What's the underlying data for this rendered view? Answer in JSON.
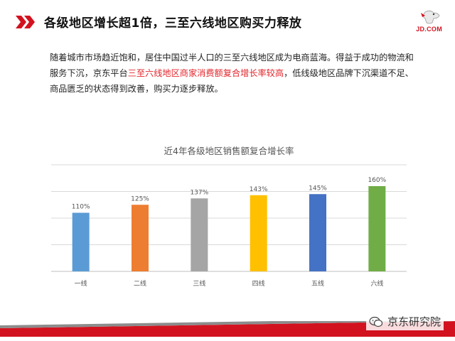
{
  "header": {
    "title": "各级地区增长超1倍，三至六线地区购买力释放",
    "brand_text": "JD.COM",
    "accent_color": "#d3121f",
    "icons": [
      "chevron-arrows-icon",
      "jd-dog-logo-icon"
    ]
  },
  "intro": {
    "before": "随着城市市场趋近饱和，居住中国过半人口的三至六线地区成为电商蓝海。得益于成功的物流和服务下沉，京东平台",
    "highlight": "三至六线地区商家消费额复合增长率较高",
    "after": "，低线级地区品牌下沉渠道不足、商品匮乏的状态得到改善，购买力逐步释放。",
    "highlight_color": "#e2252b"
  },
  "chart_data": {
    "type": "bar",
    "title": "近4年各级地区销售额复合增长率",
    "categories": [
      "一线",
      "二线",
      "三线",
      "四线",
      "五线",
      "六线"
    ],
    "values": [
      110,
      125,
      137,
      143,
      145,
      160
    ],
    "value_labels": [
      "110%",
      "125%",
      "137%",
      "143%",
      "145%",
      "160%"
    ],
    "colors": [
      "#5b9bd5",
      "#ed7d31",
      "#a5a5a5",
      "#ffc000",
      "#4472c4",
      "#70ad47"
    ],
    "ylim": [
      0,
      200
    ],
    "grid": true,
    "xlabel": "",
    "ylabel": ""
  },
  "footer": {
    "watermark": "京东研究院",
    "watermark_icon": "wechat-icon"
  }
}
